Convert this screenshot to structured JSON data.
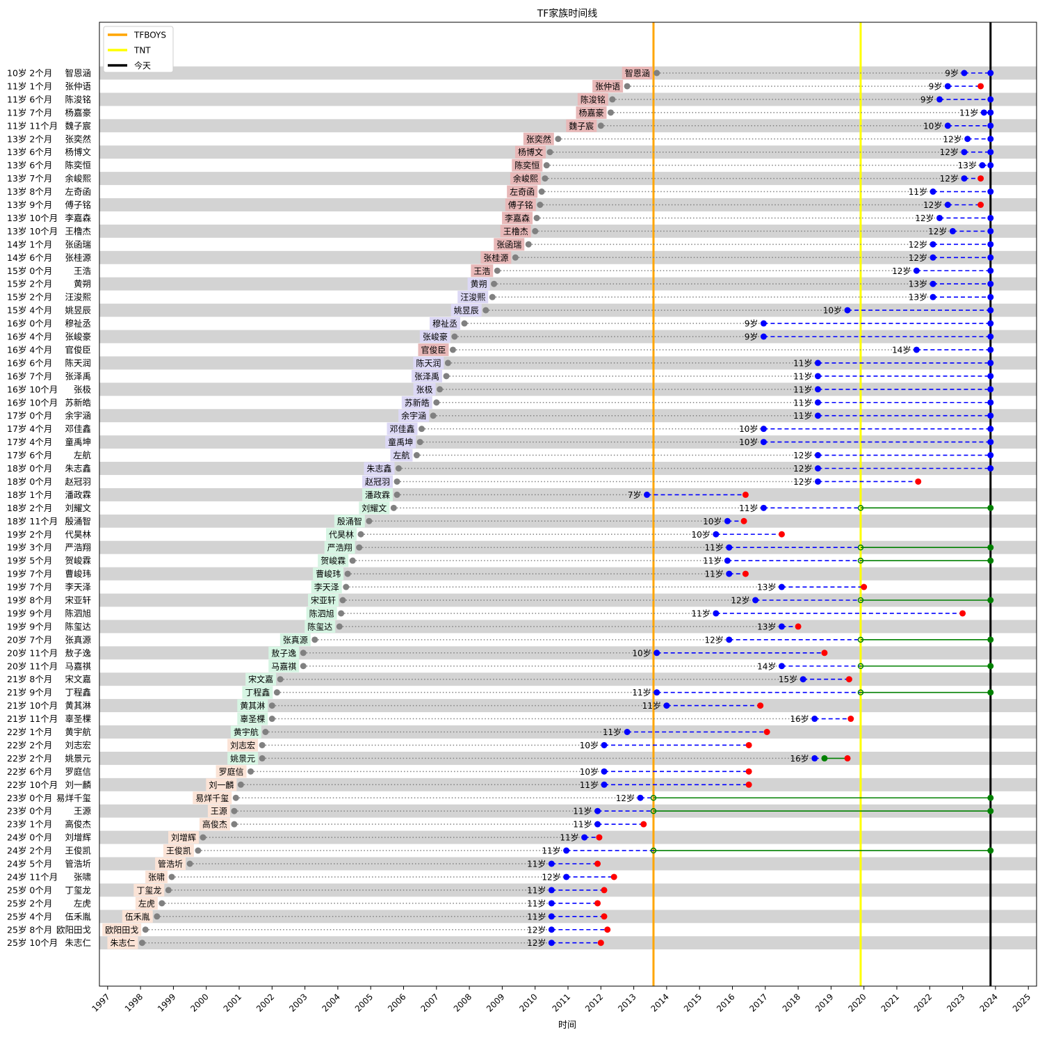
{
  "chart_data": {
    "type": "timeline",
    "title": "TF家族时间线",
    "xlabel": "时间",
    "xlim": [
      1996.75,
      2025.25
    ],
    "x_ticks": [
      1997,
      1998,
      1999,
      2000,
      2001,
      2002,
      2003,
      2004,
      2005,
      2006,
      2007,
      2008,
      2009,
      2010,
      2011,
      2012,
      2013,
      2014,
      2015,
      2016,
      2017,
      2018,
      2019,
      2020,
      2021,
      2022,
      2023,
      2024,
      2025
    ],
    "legend": {
      "position": "top-left",
      "items": [
        {
          "label": "TFBOYS",
          "color": "#ffa500"
        },
        {
          "label": "TNT",
          "color": "#ffff00"
        },
        {
          "label": "今天",
          "color": "#000000"
        }
      ]
    },
    "vlines": [
      {
        "label": "TFBOYS",
        "x": 2013.6,
        "color": "#ffa500"
      },
      {
        "label": "TNT",
        "x": 2019.9,
        "color": "#ffff00"
      },
      {
        "label": "今天",
        "x": 2023.85,
        "color": "#000000"
      }
    ],
    "colors": {
      "birth_dot": "#808080",
      "join_dot": "#0000ff",
      "leave_dot": "#ff0000",
      "debut_dot": "#008000",
      "trainee_line": "#0000ff",
      "debut_line": "#008000",
      "stripe": "#d3d3d3",
      "name_box_a": "#e8b8b8",
      "name_box_b": "#dcd8f5",
      "name_box_c": "#d6f5e3",
      "name_box_d": "#fbe3d6"
    },
    "members": [
      {
        "name": "智恩涵",
        "age_label": "10岁 2个月",
        "birth": 2013.7,
        "join": 2023.05,
        "join_age": "9岁",
        "end": 2023.85,
        "status": "current",
        "box": "a"
      },
      {
        "name": "张仲语",
        "age_label": "11岁 1个月",
        "birth": 2012.8,
        "join": 2022.55,
        "join_age": "9岁",
        "end": 2023.55,
        "status": "left",
        "box": "a"
      },
      {
        "name": "陈浚铭",
        "age_label": "11岁 6个月",
        "birth": 2012.35,
        "join": 2022.3,
        "join_age": "9岁",
        "end": 2023.85,
        "status": "current",
        "box": "a"
      },
      {
        "name": "杨嘉豪",
        "age_label": "11岁 7个月",
        "birth": 2012.3,
        "join": 2023.65,
        "join_age": "11岁",
        "end": 2023.85,
        "status": "current",
        "box": "a"
      },
      {
        "name": "魏子宸",
        "age_label": "11岁 11个月",
        "birth": 2012.0,
        "join": 2022.55,
        "join_age": "10岁",
        "end": 2023.85,
        "status": "current",
        "box": "a"
      },
      {
        "name": "张奕然",
        "age_label": "13岁 2个月",
        "birth": 2010.7,
        "join": 2023.15,
        "join_age": "12岁",
        "end": 2023.85,
        "status": "current",
        "box": "a"
      },
      {
        "name": "杨博文",
        "age_label": "13岁 6个月",
        "birth": 2010.45,
        "join": 2023.05,
        "join_age": "12岁",
        "end": 2023.85,
        "status": "current",
        "box": "a"
      },
      {
        "name": "陈奕恒",
        "age_label": "13岁 6个月",
        "birth": 2010.35,
        "join": 2023.6,
        "join_age": "13岁",
        "end": 2023.85,
        "status": "current",
        "box": "a"
      },
      {
        "name": "余峻熙",
        "age_label": "13岁 7个月",
        "birth": 2010.3,
        "join": 2023.05,
        "join_age": "12岁",
        "end": 2023.55,
        "status": "left",
        "box": "a"
      },
      {
        "name": "左奇函",
        "age_label": "13岁 8个月",
        "birth": 2010.2,
        "join": 2022.1,
        "join_age": "11岁",
        "end": 2023.85,
        "status": "current",
        "box": "a"
      },
      {
        "name": "傅子铭",
        "age_label": "13岁 9个月",
        "birth": 2010.15,
        "join": 2022.55,
        "join_age": "12岁",
        "end": 2023.55,
        "status": "left",
        "box": "a"
      },
      {
        "name": "李嘉森",
        "age_label": "13岁 10个月",
        "birth": 2010.05,
        "join": 2022.3,
        "join_age": "12岁",
        "end": 2023.85,
        "status": "current",
        "box": "a"
      },
      {
        "name": "王橹杰",
        "age_label": "13岁 10个月",
        "birth": 2010.0,
        "join": 2022.7,
        "join_age": "12岁",
        "end": 2023.85,
        "status": "current",
        "box": "a"
      },
      {
        "name": "张函瑞",
        "age_label": "14岁 1个月",
        "birth": 2009.8,
        "join": 2022.1,
        "join_age": "12岁",
        "end": 2023.85,
        "status": "current",
        "box": "a"
      },
      {
        "name": "张桂源",
        "age_label": "14岁 6个月",
        "birth": 2009.4,
        "join": 2022.1,
        "join_age": "12岁",
        "end": 2023.85,
        "status": "current",
        "box": "a"
      },
      {
        "name": "王浩",
        "age_label": "15岁 0个月",
        "birth": 2008.85,
        "join": 2021.6,
        "join_age": "12岁",
        "end": 2023.85,
        "status": "current",
        "box": "a"
      },
      {
        "name": "黄朔",
        "age_label": "15岁 2个月",
        "birth": 2008.75,
        "join": 2022.1,
        "join_age": "13岁",
        "end": 2023.85,
        "status": "current",
        "box": "b"
      },
      {
        "name": "汪浚熙",
        "age_label": "15岁 2个月",
        "birth": 2008.7,
        "join": 2022.1,
        "join_age": "13岁",
        "end": 2023.85,
        "status": "current",
        "box": "b"
      },
      {
        "name": "姚昱辰",
        "age_label": "15岁 4个月",
        "birth": 2008.5,
        "join": 2019.5,
        "join_age": "10岁",
        "end": 2023.85,
        "status": "current",
        "box": "b"
      },
      {
        "name": "穆祉丞",
        "age_label": "16岁 0个月",
        "birth": 2007.85,
        "join": 2016.95,
        "join_age": "9岁",
        "end": 2023.85,
        "status": "current",
        "box": "b"
      },
      {
        "name": "张峻豪",
        "age_label": "16岁 4个月",
        "birth": 2007.55,
        "join": 2016.95,
        "join_age": "9岁",
        "end": 2023.85,
        "status": "current",
        "box": "b"
      },
      {
        "name": "官俊臣",
        "age_label": "16岁 4个月",
        "birth": 2007.5,
        "join": 2021.6,
        "join_age": "14岁",
        "end": 2023.85,
        "status": "current",
        "box": "a"
      },
      {
        "name": "陈天润",
        "age_label": "16岁 6个月",
        "birth": 2007.35,
        "join": 2018.6,
        "join_age": "11岁",
        "end": 2023.85,
        "status": "current",
        "box": "b"
      },
      {
        "name": "张泽禹",
        "age_label": "16岁 7个月",
        "birth": 2007.3,
        "join": 2018.6,
        "join_age": "11岁",
        "end": 2023.85,
        "status": "current",
        "box": "b"
      },
      {
        "name": "张极",
        "age_label": "16岁 10个月",
        "birth": 2007.1,
        "join": 2018.6,
        "join_age": "11岁",
        "end": 2023.85,
        "status": "current",
        "box": "b"
      },
      {
        "name": "苏新皓",
        "age_label": "16岁 10个月",
        "birth": 2007.0,
        "join": 2018.6,
        "join_age": "11岁",
        "end": 2023.85,
        "status": "current",
        "box": "b"
      },
      {
        "name": "余宇涵",
        "age_label": "17岁 0个月",
        "birth": 2006.9,
        "join": 2018.6,
        "join_age": "11岁",
        "end": 2023.85,
        "status": "current",
        "box": "b"
      },
      {
        "name": "邓佳鑫",
        "age_label": "17岁 4个月",
        "birth": 2006.55,
        "join": 2016.95,
        "join_age": "10岁",
        "end": 2023.85,
        "status": "current",
        "box": "b"
      },
      {
        "name": "童禹坤",
        "age_label": "17岁 4个月",
        "birth": 2006.5,
        "join": 2016.95,
        "join_age": "10岁",
        "end": 2023.85,
        "status": "current",
        "box": "b"
      },
      {
        "name": "左航",
        "age_label": "17岁 6个月",
        "birth": 2006.4,
        "join": 2018.6,
        "join_age": "12岁",
        "end": 2023.85,
        "status": "current",
        "box": "b"
      },
      {
        "name": "朱志鑫",
        "age_label": "18岁 0个月",
        "birth": 2005.85,
        "join": 2018.6,
        "join_age": "12岁",
        "end": 2023.85,
        "status": "current",
        "box": "b"
      },
      {
        "name": "赵冠羽",
        "age_label": "18岁 0个月",
        "birth": 2005.8,
        "join": 2018.6,
        "join_age": "12岁",
        "end": 2021.65,
        "status": "left",
        "box": "b"
      },
      {
        "name": "潘政霖",
        "age_label": "18岁 1个月",
        "birth": 2005.8,
        "join": 2013.4,
        "join_age": "7岁",
        "end": 2016.4,
        "status": "left",
        "box": "c"
      },
      {
        "name": "刘耀文",
        "age_label": "18岁 2个月",
        "birth": 2005.7,
        "join": 2016.95,
        "join_age": "11岁",
        "debut": 2019.9,
        "end": 2023.85,
        "status": "debut",
        "box": "c"
      },
      {
        "name": "殷涌智",
        "age_label": "18岁 11个月",
        "birth": 2004.95,
        "join": 2015.85,
        "join_age": "10岁",
        "end": 2016.35,
        "status": "left",
        "box": "c"
      },
      {
        "name": "代昊林",
        "age_label": "19岁 2个月",
        "birth": 2004.7,
        "join": 2015.5,
        "join_age": "10岁",
        "end": 2017.5,
        "status": "left",
        "box": "c"
      },
      {
        "name": "严浩翔",
        "age_label": "19岁 3个月",
        "birth": 2004.65,
        "join": 2015.9,
        "join_age": "11岁",
        "debut": 2019.9,
        "end": 2023.85,
        "status": "debut",
        "box": "c"
      },
      {
        "name": "贺峻霖",
        "age_label": "19岁 5个月",
        "birth": 2004.45,
        "join": 2015.85,
        "join_age": "11岁",
        "debut": 2019.9,
        "end": 2023.85,
        "status": "debut",
        "box": "c"
      },
      {
        "name": "曹峻玮",
        "age_label": "19岁 7个月",
        "birth": 2004.3,
        "join": 2015.9,
        "join_age": "11岁",
        "end": 2016.4,
        "status": "left",
        "box": "c"
      },
      {
        "name": "李天泽",
        "age_label": "19岁 7个月",
        "birth": 2004.25,
        "join": 2017.5,
        "join_age": "13岁",
        "end": 2020.0,
        "status": "left",
        "box": "c"
      },
      {
        "name": "宋亚轩",
        "age_label": "19岁 8个月",
        "birth": 2004.15,
        "join": 2016.7,
        "join_age": "12岁",
        "debut": 2019.9,
        "end": 2023.85,
        "status": "debut",
        "box": "c"
      },
      {
        "name": "陈泗旭",
        "age_label": "19岁 9个月",
        "birth": 2004.1,
        "join": 2015.5,
        "join_age": "11岁",
        "end": 2023.0,
        "status": "left",
        "box": "c"
      },
      {
        "name": "陈玺达",
        "age_label": "19岁 9个月",
        "birth": 2004.05,
        "join": 2017.5,
        "join_age": "13岁",
        "end": 2018.0,
        "status": "left",
        "box": "c"
      },
      {
        "name": "张真源",
        "age_label": "20岁 7个月",
        "birth": 2003.3,
        "join": 2015.9,
        "join_age": "12岁",
        "debut": 2019.9,
        "end": 2023.85,
        "status": "debut",
        "box": "c"
      },
      {
        "name": "敖子逸",
        "age_label": "20岁 11个月",
        "birth": 2002.95,
        "join": 2013.7,
        "join_age": "10岁",
        "end": 2018.8,
        "status": "left",
        "box": "c"
      },
      {
        "name": "马嘉祺",
        "age_label": "20岁 11个月",
        "birth": 2002.95,
        "join": 2017.5,
        "join_age": "14岁",
        "debut": 2019.9,
        "end": 2023.85,
        "status": "debut",
        "box": "c"
      },
      {
        "name": "宋文嘉",
        "age_label": "21岁 8个月",
        "birth": 2002.25,
        "join": 2018.15,
        "join_age": "15岁",
        "end": 2019.55,
        "status": "left",
        "box": "c"
      },
      {
        "name": "丁程鑫",
        "age_label": "21岁 9个月",
        "birth": 2002.15,
        "join": 2013.7,
        "join_age": "11岁",
        "debut": 2019.9,
        "end": 2023.85,
        "status": "debut",
        "box": "c"
      },
      {
        "name": "黄其淋",
        "age_label": "21岁 10个月",
        "birth": 2002.0,
        "join": 2014.0,
        "join_age": "11岁",
        "end": 2016.85,
        "status": "left",
        "box": "c"
      },
      {
        "name": "辜圣棵",
        "age_label": "21岁 11个月",
        "birth": 2002.0,
        "join": 2018.5,
        "join_age": "16岁",
        "end": 2019.6,
        "status": "left",
        "box": "c"
      },
      {
        "name": "黄宇航",
        "age_label": "22岁 1个月",
        "birth": 2001.8,
        "join": 2012.8,
        "join_age": "11岁",
        "end": 2017.05,
        "status": "left",
        "box": "c"
      },
      {
        "name": "刘志宏",
        "age_label": "22岁 2个月",
        "birth": 2001.7,
        "join": 2012.1,
        "join_age": "10岁",
        "end": 2016.5,
        "status": "left",
        "box": "d"
      },
      {
        "name": "姚景元",
        "age_label": "22岁 2个月",
        "birth": 2001.7,
        "join": 2018.5,
        "join_age": "16岁",
        "debut": 2018.8,
        "end": 2019.5,
        "status": "debut-left",
        "box": "c"
      },
      {
        "name": "罗庭信",
        "age_label": "22岁 6个月",
        "birth": 2001.35,
        "join": 2012.1,
        "join_age": "10岁",
        "end": 2016.5,
        "status": "left",
        "box": "d"
      },
      {
        "name": "刘一麟",
        "age_label": "22岁 10个月",
        "birth": 2001.05,
        "join": 2012.1,
        "join_age": "11岁",
        "end": 2016.5,
        "status": "left",
        "box": "d"
      },
      {
        "name": "易烊千玺",
        "age_label": "23岁 0个月",
        "birth": 2000.9,
        "join": 2013.2,
        "join_age": "12岁",
        "debut": 2013.6,
        "end": 2023.85,
        "status": "debut",
        "box": "d"
      },
      {
        "name": "王源",
        "age_label": "23岁 0个月",
        "birth": 2000.85,
        "join": 2011.9,
        "join_age": "11岁",
        "debut": 2013.6,
        "end": 2023.85,
        "status": "debut",
        "box": "d"
      },
      {
        "name": "高俊杰",
        "age_label": "23岁 1个月",
        "birth": 2000.85,
        "join": 2011.9,
        "join_age": "11岁",
        "end": 2013.3,
        "status": "left",
        "box": "d"
      },
      {
        "name": "刘增辉",
        "age_label": "24岁 0个月",
        "birth": 1999.9,
        "join": 2011.5,
        "join_age": "11岁",
        "end": 2011.95,
        "status": "left",
        "box": "d"
      },
      {
        "name": "王俊凯",
        "age_label": "24岁 2个月",
        "birth": 1999.75,
        "join": 2010.95,
        "join_age": "11岁",
        "debut": 2013.6,
        "end": 2023.85,
        "status": "debut",
        "box": "d"
      },
      {
        "name": "管浩圻",
        "age_label": "24岁 5个月",
        "birth": 1999.5,
        "join": 2010.5,
        "join_age": "11岁",
        "end": 2011.9,
        "status": "left",
        "box": "d"
      },
      {
        "name": "张啸",
        "age_label": "24岁 11个月",
        "birth": 1998.95,
        "join": 2010.95,
        "join_age": "12岁",
        "end": 2012.4,
        "status": "left",
        "box": "d"
      },
      {
        "name": "丁玺龙",
        "age_label": "25岁 0个月",
        "birth": 1998.85,
        "join": 2010.5,
        "join_age": "11岁",
        "end": 2012.1,
        "status": "left",
        "box": "d"
      },
      {
        "name": "左虎",
        "age_label": "25岁 2个月",
        "birth": 1998.65,
        "join": 2010.5,
        "join_age": "11岁",
        "end": 2011.9,
        "status": "left",
        "box": "d"
      },
      {
        "name": "伍禾胤",
        "age_label": "25岁 4个月",
        "birth": 1998.5,
        "join": 2010.5,
        "join_age": "11岁",
        "end": 2012.1,
        "status": "left",
        "box": "d"
      },
      {
        "name": "欧阳田戈",
        "age_label": "25岁 8个月",
        "birth": 1998.15,
        "join": 2010.5,
        "join_age": "12岁",
        "end": 2012.2,
        "status": "left",
        "box": "d"
      },
      {
        "name": "朱志仁",
        "age_label": "25岁 10个月",
        "birth": 1998.05,
        "join": 2010.5,
        "join_age": "12岁",
        "end": 2012.0,
        "status": "left",
        "box": "d"
      }
    ]
  }
}
